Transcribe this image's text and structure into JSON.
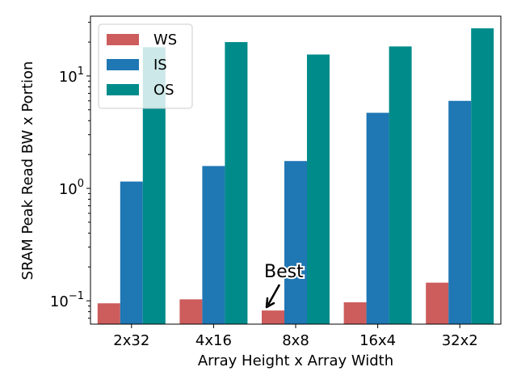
{
  "chart_data": {
    "type": "bar",
    "title": "",
    "xlabel": "Array Height x Array Width",
    "ylabel": "SRAM Peak Read BW x Portion",
    "yscale": "log",
    "ylim": [
      0.062,
      34
    ],
    "yticks": [
      {
        "value": 0.1,
        "base": "10",
        "exp": "−1"
      },
      {
        "value": 1,
        "base": "10",
        "exp": "0"
      },
      {
        "value": 10,
        "base": "10",
        "exp": "1"
      }
    ],
    "categories": [
      "2x32",
      "4x16",
      "8x8",
      "16x4",
      "32x2"
    ],
    "series": [
      {
        "name": "WS",
        "color": "#cd5c5c",
        "values": [
          0.095,
          0.103,
          0.082,
          0.097,
          0.145
        ]
      },
      {
        "name": "IS",
        "color": "#1f77b4",
        "values": [
          1.15,
          1.58,
          1.75,
          4.7,
          6.0
        ]
      },
      {
        "name": "OS",
        "color": "#008b8b",
        "values": [
          18.0,
          20.0,
          15.5,
          18.3,
          26.5
        ]
      }
    ],
    "legend": {
      "position": "upper-left"
    },
    "grid": false,
    "annotation": {
      "text": "Best",
      "target_category": "8x8",
      "target_series": "WS"
    }
  }
}
